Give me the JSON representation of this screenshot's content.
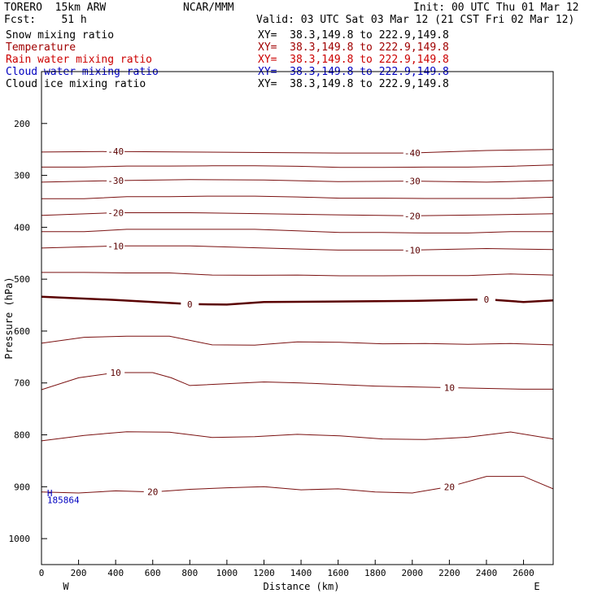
{
  "header": {
    "model": "TORERO  15km ARW",
    "org": "NCAR/MMM",
    "init": "Init: 00 UTC Thu 01 Mar 12",
    "fcst": "Fcst:    51 h",
    "valid": "Valid: 03 UTC Sat 03 Mar 12 (21 CST Fri 02 Mar 12)"
  },
  "fields": [
    {
      "name": "Snow mixing ratio",
      "xy": "XY=  38.3,149.8 to 222.9,149.8",
      "color": "#000000"
    },
    {
      "name": "Temperature",
      "xy": "XY=  38.3,149.8 to 222.9,149.8",
      "color": "#a00000"
    },
    {
      "name": "Rain water mixing ratio",
      "xy": "XY=  38.3,149.8 to 222.9,149.8",
      "color": "#cc0000"
    },
    {
      "name": "Cloud water mixing ratio",
      "xy": "XY=  38.3,149.8 to 222.9,149.8",
      "color": "#0000c0"
    },
    {
      "name": "Cloud ice mixing ratio",
      "xy": "XY=  38.3,149.8 to 222.9,149.8",
      "color": "#000000"
    }
  ],
  "chart_data": {
    "type": "line",
    "xlabel": "Distance (km)",
    "ylabel": "Pressure (hPa)",
    "xlim": [
      0,
      2760
    ],
    "ylim": [
      1050,
      100
    ],
    "xticks": [
      0,
      200,
      400,
      600,
      800,
      1000,
      1200,
      1400,
      1600,
      1800,
      2000,
      2200,
      2400,
      2600
    ],
    "yticks": [
      200,
      300,
      400,
      500,
      600,
      700,
      800,
      900,
      1000
    ],
    "left_end_label": "W",
    "right_end_label": "E",
    "series": [
      {
        "name": "-40",
        "x": [
          0,
          400,
          800,
          1200,
          1600,
          2000,
          2400,
          2760
        ],
        "y": [
          255,
          254,
          255,
          256,
          257,
          257,
          252,
          250
        ]
      },
      {
        "name": "-30",
        "x": [
          0,
          400,
          800,
          1200,
          1600,
          2000,
          2400,
          2760
        ],
        "y": [
          313,
          310,
          308,
          309,
          312,
          311,
          313,
          310
        ]
      },
      {
        "name": "-20",
        "x": [
          0,
          400,
          800,
          1200,
          1600,
          2000,
          2400,
          2760
        ],
        "y": [
          377,
          372,
          372,
          374,
          376,
          378,
          376,
          374
        ]
      },
      {
        "name": "-10",
        "x": [
          0,
          400,
          800,
          1200,
          1600,
          2000,
          2400,
          2760
        ],
        "y": [
          440,
          436,
          436,
          440,
          444,
          444,
          441,
          443
        ]
      },
      {
        "name": "0",
        "x": [
          0,
          400,
          800,
          1000,
          1200,
          1600,
          2000,
          2400,
          2600,
          2760
        ],
        "y": [
          534,
          540,
          548,
          549,
          544,
          543,
          542,
          539,
          544,
          541
        ]
      },
      {
        "name": "10",
        "x": [
          0,
          200,
          400,
          600,
          700,
          800,
          1200,
          1400,
          1800,
          2200,
          2600,
          2760
        ],
        "y": [
          713,
          690,
          680,
          680,
          690,
          705,
          698,
          700,
          706,
          709,
          712,
          712
        ]
      },
      {
        "name": "20",
        "x": [
          0,
          200,
          400,
          600,
          800,
          1000,
          1200,
          1400,
          1600,
          1800,
          2000,
          2200,
          2400,
          2600,
          2760
        ],
        "y": [
          910,
          912,
          908,
          910,
          905,
          902,
          900,
          906,
          904,
          910,
          912,
          900,
          880,
          880,
          904
        ]
      }
    ],
    "annotations": [
      {
        "text": "H",
        "x": 30,
        "y": 918
      },
      {
        "text": "185864",
        "x": 30,
        "y": 932
      }
    ]
  }
}
